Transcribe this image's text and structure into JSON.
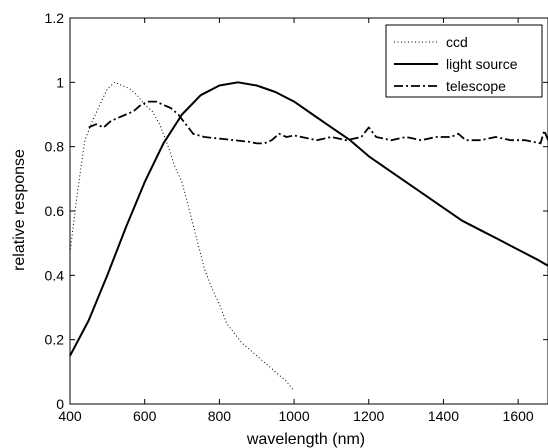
{
  "chart_data": {
    "type": "line",
    "title": "",
    "xlabel": "wavelength (nm)",
    "ylabel": "relative response",
    "xlim": [
      400,
      1680
    ],
    "ylim": [
      0,
      1.2
    ],
    "xticks": [
      400,
      600,
      800,
      1000,
      1200,
      1400,
      1600
    ],
    "yticks": [
      0,
      0.2,
      0.4,
      0.6,
      0.8,
      1,
      1.2
    ],
    "xtick_labels": [
      "400",
      "600",
      "800",
      "1000",
      "1200",
      "1400",
      "1600"
    ],
    "ytick_labels": [
      "0",
      "0.2",
      "0.4",
      "0.6",
      "0.8",
      "1",
      "1.2"
    ],
    "grid": false,
    "legend_position": "top-right",
    "series": [
      {
        "name": "ccd",
        "style": "dotted",
        "x": [
          400,
          420,
          440,
          460,
          480,
          500,
          520,
          540,
          560,
          580,
          600,
          620,
          640,
          660,
          680,
          700,
          720,
          740,
          760,
          780,
          800,
          820,
          840,
          860,
          880,
          900,
          920,
          940,
          960,
          980,
          1000
        ],
        "y": [
          0.47,
          0.66,
          0.82,
          0.88,
          0.93,
          0.98,
          1.0,
          0.99,
          0.98,
          0.96,
          0.93,
          0.91,
          0.87,
          0.81,
          0.74,
          0.69,
          0.6,
          0.51,
          0.42,
          0.36,
          0.31,
          0.25,
          0.22,
          0.19,
          0.17,
          0.15,
          0.13,
          0.11,
          0.09,
          0.07,
          0.04
        ]
      },
      {
        "name": "light source",
        "style": "solid",
        "x": [
          400,
          450,
          500,
          550,
          600,
          650,
          700,
          750,
          800,
          850,
          900,
          950,
          1000,
          1050,
          1100,
          1150,
          1200,
          1250,
          1300,
          1350,
          1400,
          1450,
          1500,
          1550,
          1600,
          1650,
          1680
        ],
        "y": [
          0.15,
          0.26,
          0.4,
          0.55,
          0.69,
          0.81,
          0.9,
          0.96,
          0.99,
          1.0,
          0.99,
          0.97,
          0.94,
          0.9,
          0.86,
          0.82,
          0.77,
          0.73,
          0.69,
          0.65,
          0.61,
          0.57,
          0.54,
          0.51,
          0.48,
          0.45,
          0.43
        ]
      },
      {
        "name": "telescope",
        "style": "dash-dot",
        "x": [
          450,
          470,
          490,
          510,
          530,
          550,
          570,
          590,
          610,
          630,
          650,
          670,
          690,
          710,
          730,
          760,
          800,
          840,
          880,
          900,
          920,
          940,
          960,
          980,
          1000,
          1020,
          1060,
          1100,
          1140,
          1180,
          1200,
          1220,
          1260,
          1300,
          1340,
          1380,
          1420,
          1440,
          1460,
          1500,
          1540,
          1580,
          1620,
          1660,
          1670,
          1680
        ],
        "y": [
          0.86,
          0.87,
          0.86,
          0.88,
          0.89,
          0.9,
          0.91,
          0.93,
          0.94,
          0.94,
          0.93,
          0.92,
          0.9,
          0.87,
          0.84,
          0.83,
          0.825,
          0.82,
          0.815,
          0.81,
          0.81,
          0.82,
          0.84,
          0.83,
          0.835,
          0.83,
          0.82,
          0.83,
          0.82,
          0.83,
          0.86,
          0.83,
          0.82,
          0.83,
          0.82,
          0.83,
          0.83,
          0.84,
          0.82,
          0.82,
          0.83,
          0.82,
          0.82,
          0.81,
          0.85,
          0.82
        ]
      }
    ]
  }
}
